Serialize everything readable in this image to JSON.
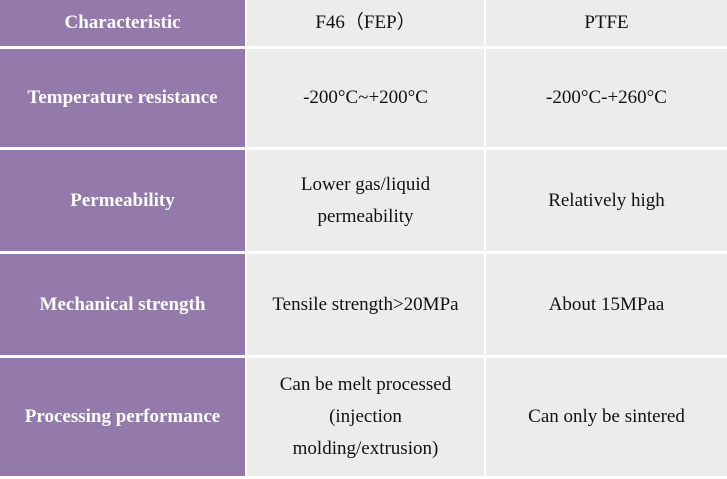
{
  "table": {
    "header": {
      "characteristic": "Characteristic",
      "col1": "F46（FEP）",
      "col2": "PTFE"
    },
    "rows": [
      {
        "label": "Temperature resistance",
        "f46": [
          "-200°C~+200°C"
        ],
        "ptfe": [
          "-200°C-+260°C"
        ]
      },
      {
        "label": "Permeability",
        "f46": [
          "Lower gas/liquid",
          "permeability"
        ],
        "ptfe": [
          "Relatively high"
        ]
      },
      {
        "label": "Mechanical strength",
        "f46": [
          "Tensile strength>20MPa"
        ],
        "ptfe": [
          "About 15MPaa"
        ]
      },
      {
        "label": "Processing performance",
        "f46": [
          "Can be melt processed",
          "(injection",
          "molding/extrusion)"
        ],
        "ptfe": [
          "Can only be sintered"
        ]
      }
    ]
  }
}
